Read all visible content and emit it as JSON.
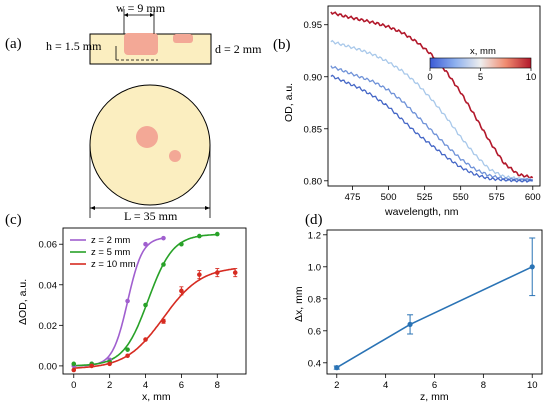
{
  "panel_labels": {
    "a": "(a)",
    "b": "(b)",
    "c": "(c)",
    "d": "(d)"
  },
  "colors": {
    "phantom_fill": "#fbeec0",
    "inclusion_fill": "#f3a896",
    "z2": "#a05fcf",
    "z5": "#28a228",
    "z10": "#d62b21",
    "line_d": "#2a73b5"
  },
  "schematic": {
    "width_label": "w = 9 mm",
    "height_label": "h = 1.5 mm",
    "depth_label": "d = 2 mm",
    "length_label": "L = 35 mm"
  },
  "chart_data": [
    {
      "id": "b",
      "type": "line",
      "xlabel": "wavelength, nm",
      "ylabel": "OD, a.u.",
      "xlim": [
        458,
        605
      ],
      "ylim": [
        0.795,
        0.968
      ],
      "xticks": [
        475,
        500,
        525,
        550,
        575,
        600
      ],
      "yticks": [
        0.8,
        0.85,
        0.9,
        0.95
      ],
      "colorbar": {
        "label": "x, mm",
        "range": [
          0,
          10
        ],
        "ticks": [
          0,
          5,
          10
        ]
      },
      "series": [
        {
          "color_value": 10,
          "color": "#b2182b",
          "x": [
            460,
            470,
            480,
            490,
            500,
            510,
            520,
            530,
            540,
            550,
            560,
            570,
            580,
            590,
            600
          ],
          "y": [
            0.962,
            0.958,
            0.955,
            0.952,
            0.948,
            0.942,
            0.933,
            0.921,
            0.905,
            0.885,
            0.862,
            0.838,
            0.817,
            0.806,
            0.803
          ]
        },
        {
          "color_value": 5.5,
          "color": "#a8c8ea",
          "x": [
            460,
            470,
            480,
            490,
            500,
            510,
            520,
            530,
            540,
            550,
            560,
            570,
            580,
            590,
            600
          ],
          "y": [
            0.934,
            0.93,
            0.926,
            0.921,
            0.914,
            0.905,
            0.893,
            0.878,
            0.861,
            0.842,
            0.825,
            0.811,
            0.804,
            0.802,
            0.801
          ]
        },
        {
          "color_value": 3,
          "color": "#6f92d8",
          "x": [
            460,
            470,
            480,
            490,
            500,
            510,
            520,
            530,
            540,
            550,
            560,
            570,
            580,
            590,
            600
          ],
          "y": [
            0.91,
            0.905,
            0.9,
            0.895,
            0.887,
            0.876,
            0.862,
            0.848,
            0.834,
            0.821,
            0.811,
            0.805,
            0.802,
            0.801,
            0.801
          ]
        },
        {
          "color_value": 1.5,
          "color": "#4466c6",
          "x": [
            460,
            470,
            480,
            490,
            500,
            510,
            520,
            530,
            540,
            550,
            560,
            570,
            580,
            590,
            600
          ],
          "y": [
            0.901,
            0.895,
            0.889,
            0.881,
            0.871,
            0.858,
            0.845,
            0.834,
            0.823,
            0.813,
            0.806,
            0.802,
            0.801,
            0.8,
            0.8
          ]
        }
      ]
    },
    {
      "id": "c",
      "type": "scatter",
      "xlabel": "x, mm",
      "ylabel": "ΔOD, a.u.",
      "xlim": [
        -0.6,
        9.6
      ],
      "ylim": [
        -0.004,
        0.068
      ],
      "xticks": [
        0,
        2,
        4,
        6,
        8
      ],
      "yticks": [
        0.0,
        0.02,
        0.04,
        0.06
      ],
      "legend_position": "top-left",
      "series": [
        {
          "name": "z = 2 mm",
          "color": "#a05fcf",
          "x": [
            0,
            1,
            2,
            3,
            4,
            5
          ],
          "y": [
            0.0,
            0.001,
            0.003,
            0.032,
            0.06,
            0.063
          ],
          "fit": {
            "L": 0.0635,
            "k": 2.4,
            "x0": 3.0,
            "b": 0.0
          }
        },
        {
          "name": "z = 5 mm",
          "color": "#28a228",
          "x": [
            0,
            1,
            2,
            3,
            4,
            5,
            6,
            7,
            8
          ],
          "y": [
            0.001,
            0.001,
            0.002,
            0.008,
            0.03,
            0.05,
            0.06,
            0.064,
            0.065
          ],
          "fit": {
            "L": 0.065,
            "k": 1.45,
            "x0": 4.15,
            "b": 0.0
          }
        },
        {
          "name": "z = 10 mm",
          "color": "#d62b21",
          "x": [
            0,
            1,
            2,
            3,
            4,
            5,
            6,
            7,
            8,
            9
          ],
          "y": [
            -0.002,
            0.0,
            0.001,
            0.005,
            0.013,
            0.022,
            0.037,
            0.045,
            0.046,
            0.046
          ],
          "err": [
            0,
            0,
            0,
            0,
            0,
            0.001,
            0.002,
            0.002,
            0.002,
            0.002
          ],
          "fit": {
            "L": 0.0505,
            "k": 0.95,
            "x0": 5.0,
            "b": -0.0015
          }
        }
      ]
    },
    {
      "id": "d",
      "type": "line",
      "xlabel": "z, mm",
      "ylabel": "Δx, mm",
      "xlim": [
        1.6,
        10.4
      ],
      "ylim": [
        0.33,
        1.23
      ],
      "xticks": [
        2,
        4,
        6,
        8,
        10
      ],
      "yticks": [
        0.4,
        0.6,
        0.8,
        1.0,
        1.2
      ],
      "series": [
        {
          "color": "#2a73b5",
          "x": [
            2,
            5,
            10
          ],
          "y": [
            0.37,
            0.64,
            1.0
          ],
          "err": [
            0.01,
            0.06,
            0.18
          ]
        }
      ]
    }
  ]
}
